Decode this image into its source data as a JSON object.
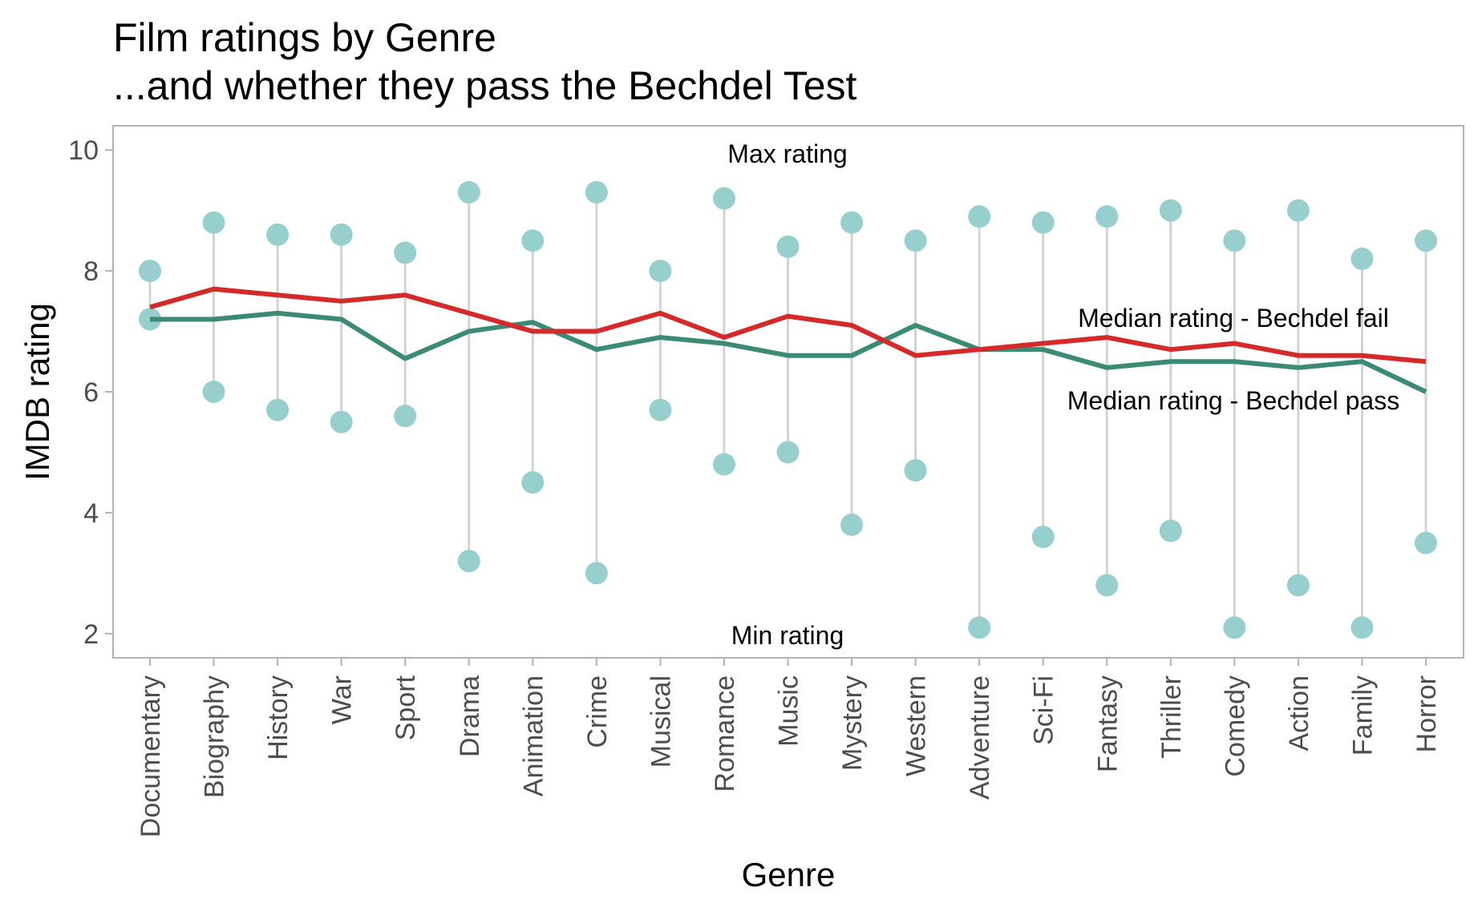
{
  "chart_data": {
    "type": "line",
    "title": "Film ratings by Genre",
    "subtitle": "...and whether they pass the Bechdel Test",
    "xlabel": "Genre",
    "ylabel": "IMDB rating",
    "ylim": [
      1.6,
      10.4
    ],
    "yticks": [
      2,
      4,
      6,
      8,
      10
    ],
    "categories": [
      "Documentary",
      "Biography",
      "History",
      "War",
      "Sport",
      "Drama",
      "Animation",
      "Crime",
      "Musical",
      "Romance",
      "Music",
      "Mystery",
      "Western",
      "Adventure",
      "Sci-Fi",
      "Fantasy",
      "Thriller",
      "Comedy",
      "Action",
      "Family",
      "Horror"
    ],
    "max_rating": [
      8.0,
      8.8,
      8.6,
      8.6,
      8.3,
      9.3,
      8.5,
      9.3,
      8.0,
      9.2,
      8.4,
      8.8,
      8.5,
      8.9,
      8.8,
      8.9,
      9.0,
      8.5,
      9.0,
      8.2,
      8.5
    ],
    "min_rating": [
      7.2,
      6.0,
      5.7,
      5.5,
      5.6,
      3.2,
      4.5,
      3.0,
      5.7,
      4.8,
      5.0,
      3.8,
      4.7,
      2.1,
      3.6,
      2.8,
      3.7,
      2.1,
      2.8,
      2.1,
      3.5
    ],
    "series": [
      {
        "name": "Median rating - Bechdel fail",
        "color": "#d42a2a",
        "values": [
          7.4,
          7.7,
          7.6,
          7.5,
          7.6,
          7.3,
          7.0,
          7.0,
          7.3,
          6.9,
          7.25,
          7.1,
          6.6,
          6.7,
          6.8,
          6.9,
          6.7,
          6.8,
          6.6,
          6.6,
          6.5
        ]
      },
      {
        "name": "Median rating - Bechdel pass",
        "color": "#3b8a73",
        "values": [
          7.2,
          7.2,
          7.3,
          7.2,
          6.55,
          7.0,
          7.15,
          6.7,
          6.9,
          6.8,
          6.6,
          6.6,
          7.1,
          6.7,
          6.7,
          6.4,
          6.5,
          6.5,
          6.4,
          6.5,
          6.0
        ]
      }
    ],
    "annotations": {
      "max_label": "Max rating",
      "min_label": "Min rating",
      "fail_label": "Median rating - Bechdel fail",
      "pass_label": "Median rating - Bechdel pass"
    },
    "colors": {
      "point": "#96cfcd",
      "range_line": "#d3d3d3",
      "panel_border": "#b3b3b3"
    },
    "grid": false,
    "legend": "none"
  }
}
